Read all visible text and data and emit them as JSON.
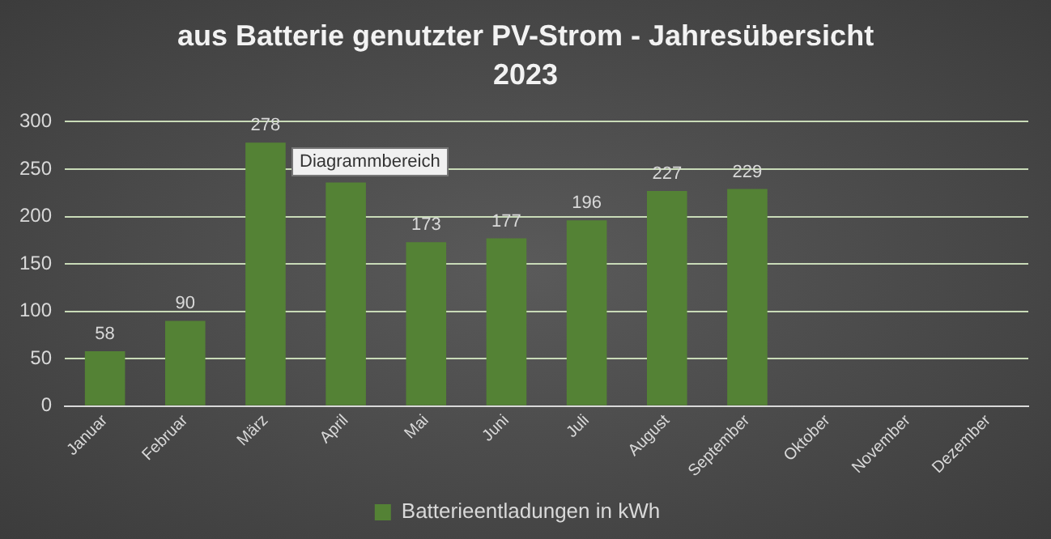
{
  "chart_data": {
    "type": "bar",
    "title": "aus Batterie genutzter PV-Strom - Jahresübersicht 2023",
    "categories": [
      "Januar",
      "Februar",
      "März",
      "April",
      "Mai",
      "Juni",
      "Juli",
      "August",
      "September",
      "Oktober",
      "November",
      "Dezember"
    ],
    "series": [
      {
        "name": "Batterieentladungen in kWh",
        "color": "#548235",
        "values": [
          58,
          90,
          278,
          236,
          173,
          177,
          196,
          227,
          229,
          null,
          null,
          null
        ]
      }
    ],
    "value_labels": [
      "58",
      "90",
      "278",
      null,
      "173",
      "177",
      "196",
      "227",
      "229",
      null,
      null,
      null
    ],
    "annotations": [
      "Diagrammbereich"
    ],
    "ylim": [
      0,
      300
    ],
    "yticks": [
      0,
      50,
      100,
      150,
      200,
      250,
      300
    ],
    "grid": "y",
    "legend": "bottom"
  }
}
